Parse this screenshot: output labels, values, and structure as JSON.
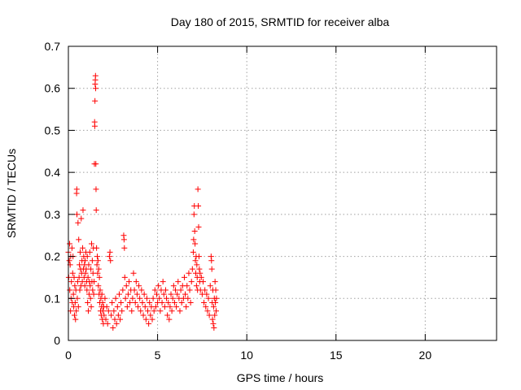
{
  "chart_data": {
    "type": "scatter",
    "title": "Day 180 of 2015, SRMTID for receiver alba",
    "xlabel": "GPS time / hours",
    "ylabel": "SRMTID / TECUs",
    "xlim": [
      0,
      24
    ],
    "ylim": [
      0,
      0.7
    ],
    "xticks": [
      0,
      5,
      10,
      15,
      20
    ],
    "xtick_labels": [
      "0",
      "5",
      "10",
      "15",
      "20"
    ],
    "yticks": [
      0,
      0.1,
      0.2,
      0.3,
      0.4,
      0.5,
      0.6,
      0.7
    ],
    "ytick_labels": [
      "0",
      "0.1",
      "0.2",
      "0.3",
      "0.4",
      "0.5",
      "0.6",
      "0.7"
    ],
    "grid": true,
    "marker": "+",
    "color": "#ff0000",
    "series": [
      {
        "name": "SRMTID",
        "points": [
          [
            0.0,
            0.21
          ],
          [
            0.02,
            0.15
          ],
          [
            0.05,
            0.19
          ],
          [
            0.07,
            0.23
          ],
          [
            0.08,
            0.12
          ],
          [
            0.1,
            0.18
          ],
          [
            0.12,
            0.07
          ],
          [
            0.13,
            0.2
          ],
          [
            0.15,
            0.1
          ],
          [
            0.17,
            0.14
          ],
          [
            0.2,
            0.22
          ],
          [
            0.22,
            0.09
          ],
          [
            0.24,
            0.16
          ],
          [
            0.26,
            0.2
          ],
          [
            0.28,
            0.11
          ],
          [
            0.3,
            0.08
          ],
          [
            0.32,
            0.15
          ],
          [
            0.34,
            0.06
          ],
          [
            0.36,
            0.13
          ],
          [
            0.38,
            0.09
          ],
          [
            0.4,
            0.05
          ],
          [
            0.42,
            0.12
          ],
          [
            0.44,
            0.07
          ],
          [
            0.46,
            0.35
          ],
          [
            0.47,
            0.36
          ],
          [
            0.48,
            0.3
          ],
          [
            0.5,
            0.1
          ],
          [
            0.52,
            0.14
          ],
          [
            0.54,
            0.28
          ],
          [
            0.56,
            0.08
          ],
          [
            0.58,
            0.24
          ],
          [
            0.6,
            0.15
          ],
          [
            0.62,
            0.18
          ],
          [
            0.64,
            0.12
          ],
          [
            0.66,
            0.21
          ],
          [
            0.68,
            0.17
          ],
          [
            0.7,
            0.13
          ],
          [
            0.72,
            0.29
          ],
          [
            0.74,
            0.16
          ],
          [
            0.76,
            0.19
          ],
          [
            0.78,
            0.14
          ],
          [
            0.8,
            0.22
          ],
          [
            0.82,
            0.31
          ],
          [
            0.84,
            0.17
          ],
          [
            0.86,
            0.2
          ],
          [
            0.88,
            0.15
          ],
          [
            0.9,
            0.18
          ],
          [
            0.92,
            0.13
          ],
          [
            0.94,
            0.19
          ],
          [
            0.96,
            0.16
          ],
          [
            0.98,
            0.21
          ],
          [
            1.0,
            0.17
          ],
          [
            1.02,
            0.14
          ],
          [
            1.04,
            0.12
          ],
          [
            1.06,
            0.2
          ],
          [
            1.08,
            0.09
          ],
          [
            1.1,
            0.15
          ],
          [
            1.12,
            0.07
          ],
          [
            1.14,
            0.18
          ],
          [
            1.16,
            0.11
          ],
          [
            1.18,
            0.14
          ],
          [
            1.2,
            0.21
          ],
          [
            1.22,
            0.13
          ],
          [
            1.24,
            0.1
          ],
          [
            1.26,
            0.17
          ],
          [
            1.28,
            0.08
          ],
          [
            1.3,
            0.23
          ],
          [
            1.32,
            0.14
          ],
          [
            1.34,
            0.19
          ],
          [
            1.36,
            0.12
          ],
          [
            1.38,
            0.16
          ],
          [
            1.4,
            0.22
          ],
          [
            1.42,
            0.11
          ],
          [
            1.44,
            0.14
          ],
          [
            1.46,
            0.42
          ],
          [
            1.47,
            0.52
          ],
          [
            1.48,
            0.51
          ],
          [
            1.49,
            0.57
          ],
          [
            1.5,
            0.61
          ],
          [
            1.51,
            0.62
          ],
          [
            1.52,
            0.63
          ],
          [
            1.53,
            0.6
          ],
          [
            1.54,
            0.42
          ],
          [
            1.55,
            0.36
          ],
          [
            1.56,
            0.31
          ],
          [
            1.58,
            0.22
          ],
          [
            1.6,
            0.18
          ],
          [
            1.62,
            0.2
          ],
          [
            1.64,
            0.16
          ],
          [
            1.66,
            0.19
          ],
          [
            1.68,
            0.13
          ],
          [
            1.7,
            0.17
          ],
          [
            1.72,
            0.11
          ],
          [
            1.74,
            0.15
          ],
          [
            1.76,
            0.09
          ],
          [
            1.78,
            0.12
          ],
          [
            1.8,
            0.07
          ],
          [
            1.82,
            0.1
          ],
          [
            1.84,
            0.06
          ],
          [
            1.86,
            0.08
          ],
          [
            1.88,
            0.11
          ],
          [
            1.9,
            0.05
          ],
          [
            1.92,
            0.09
          ],
          [
            1.94,
            0.07
          ],
          [
            1.96,
            0.04
          ],
          [
            1.98,
            0.08
          ],
          [
            2.0,
            0.06
          ],
          [
            2.05,
            0.1
          ],
          [
            2.1,
            0.05
          ],
          [
            2.15,
            0.08
          ],
          [
            2.2,
            0.04
          ],
          [
            2.25,
            0.07
          ],
          [
            2.3,
            0.2
          ],
          [
            2.33,
            0.21
          ],
          [
            2.36,
            0.19
          ],
          [
            2.4,
            0.06
          ],
          [
            2.45,
            0.09
          ],
          [
            2.5,
            0.03
          ],
          [
            2.55,
            0.07
          ],
          [
            2.6,
            0.05
          ],
          [
            2.65,
            0.1
          ],
          [
            2.7,
            0.04
          ],
          [
            2.75,
            0.08
          ],
          [
            2.8,
            0.06
          ],
          [
            2.85,
            0.11
          ],
          [
            2.9,
            0.05
          ],
          [
            2.95,
            0.09
          ],
          [
            3.0,
            0.07
          ],
          [
            3.05,
            0.12
          ],
          [
            3.1,
            0.25
          ],
          [
            3.12,
            0.24
          ],
          [
            3.14,
            0.22
          ],
          [
            3.16,
            0.15
          ],
          [
            3.2,
            0.1
          ],
          [
            3.25,
            0.13
          ],
          [
            3.3,
            0.08
          ],
          [
            3.35,
            0.11
          ],
          [
            3.4,
            0.14
          ],
          [
            3.45,
            0.09
          ],
          [
            3.5,
            0.12
          ],
          [
            3.55,
            0.07
          ],
          [
            3.6,
            0.1
          ],
          [
            3.65,
            0.16
          ],
          [
            3.7,
            0.12
          ],
          [
            3.75,
            0.09
          ],
          [
            3.8,
            0.14
          ],
          [
            3.85,
            0.11
          ],
          [
            3.9,
            0.08
          ],
          [
            3.95,
            0.13
          ],
          [
            4.0,
            0.1
          ],
          [
            4.05,
            0.07
          ],
          [
            4.1,
            0.12
          ],
          [
            4.15,
            0.09
          ],
          [
            4.2,
            0.06
          ],
          [
            4.25,
            0.11
          ],
          [
            4.3,
            0.08
          ],
          [
            4.35,
            0.05
          ],
          [
            4.4,
            0.1
          ],
          [
            4.45,
            0.07
          ],
          [
            4.5,
            0.04
          ],
          [
            4.55,
            0.09
          ],
          [
            4.6,
            0.06
          ],
          [
            4.65,
            0.08
          ],
          [
            4.7,
            0.05
          ],
          [
            4.75,
            0.1
          ],
          [
            4.8,
            0.07
          ],
          [
            4.85,
            0.12
          ],
          [
            4.9,
            0.08
          ],
          [
            4.95,
            0.11
          ],
          [
            5.0,
            0.09
          ],
          [
            5.05,
            0.13
          ],
          [
            5.1,
            0.1
          ],
          [
            5.15,
            0.07
          ],
          [
            5.2,
            0.12
          ],
          [
            5.25,
            0.09
          ],
          [
            5.3,
            0.14
          ],
          [
            5.35,
            0.11
          ],
          [
            5.4,
            0.08
          ],
          [
            5.45,
            0.12
          ],
          [
            5.5,
            0.1
          ],
          [
            5.55,
            0.06
          ],
          [
            5.6,
            0.09
          ],
          [
            5.65,
            0.05
          ],
          [
            5.7,
            0.08
          ],
          [
            5.75,
            0.11
          ],
          [
            5.8,
            0.07
          ],
          [
            5.85,
            0.1
          ],
          [
            5.9,
            0.13
          ],
          [
            5.95,
            0.09
          ],
          [
            6.0,
            0.12
          ],
          [
            6.05,
            0.08
          ],
          [
            6.1,
            0.11
          ],
          [
            6.15,
            0.14
          ],
          [
            6.2,
            0.1
          ],
          [
            6.25,
            0.07
          ],
          [
            6.3,
            0.12
          ],
          [
            6.35,
            0.09
          ],
          [
            6.4,
            0.13
          ],
          [
            6.45,
            0.1
          ],
          [
            6.5,
            0.15
          ],
          [
            6.55,
            0.11
          ],
          [
            6.6,
            0.08
          ],
          [
            6.65,
            0.13
          ],
          [
            6.7,
            0.1
          ],
          [
            6.75,
            0.16
          ],
          [
            6.8,
            0.12
          ],
          [
            6.85,
            0.09
          ],
          [
            6.9,
            0.14
          ],
          [
            6.95,
            0.17
          ],
          [
            7.0,
            0.21
          ],
          [
            7.02,
            0.24
          ],
          [
            7.04,
            0.3
          ],
          [
            7.06,
            0.32
          ],
          [
            7.08,
            0.26
          ],
          [
            7.1,
            0.23
          ],
          [
            7.12,
            0.19
          ],
          [
            7.14,
            0.16
          ],
          [
            7.16,
            0.2
          ],
          [
            7.18,
            0.13
          ],
          [
            7.2,
            0.18
          ],
          [
            7.22,
            0.15
          ],
          [
            7.24,
            0.12
          ],
          [
            7.26,
            0.36
          ],
          [
            7.28,
            0.32
          ],
          [
            7.3,
            0.27
          ],
          [
            7.32,
            0.2
          ],
          [
            7.34,
            0.17
          ],
          [
            7.36,
            0.14
          ],
          [
            7.38,
            0.16
          ],
          [
            7.4,
            0.12
          ],
          [
            7.45,
            0.15
          ],
          [
            7.5,
            0.11
          ],
          [
            7.55,
            0.14
          ],
          [
            7.6,
            0.09
          ],
          [
            7.65,
            0.12
          ],
          [
            7.7,
            0.08
          ],
          [
            7.75,
            0.11
          ],
          [
            7.8,
            0.07
          ],
          [
            7.85,
            0.1
          ],
          [
            7.9,
            0.06
          ],
          [
            7.95,
            0.13
          ],
          [
            8.0,
            0.2
          ],
          [
            8.02,
            0.19
          ],
          [
            8.04,
            0.17
          ],
          [
            8.06,
            0.09
          ],
          [
            8.08,
            0.05
          ],
          [
            8.1,
            0.12
          ],
          [
            8.12,
            0.04
          ],
          [
            8.14,
            0.08
          ],
          [
            8.16,
            0.03
          ],
          [
            8.18,
            0.1
          ],
          [
            8.2,
            0.06
          ],
          [
            8.22,
            0.14
          ],
          [
            8.24,
            0.09
          ],
          [
            8.26,
            0.12
          ],
          [
            8.28,
            0.07
          ],
          [
            8.3,
            0.1
          ]
        ]
      }
    ]
  }
}
